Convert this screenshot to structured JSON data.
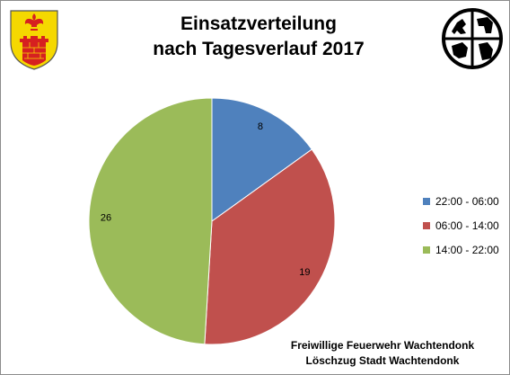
{
  "header": {
    "title_line1": "Einsatzverteilung",
    "title_line2": "nach Tagesverlauf 2017"
  },
  "footer": {
    "line1": "Freiwillige Feuerwehr Wachtendonk",
    "line2": "Löschzug Stadt Wachtendonk"
  },
  "logos": {
    "left": "wachtendonk-coat-of-arms",
    "right": "fire-brigade-emblem"
  },
  "chart_data": {
    "type": "pie",
    "categories": [
      "22:00 - 06:00",
      "06:00 - 14:00",
      "14:00 - 22:00"
    ],
    "values": [
      8,
      19,
      26
    ],
    "colors": [
      "#4f81bd",
      "#c0504d",
      "#9bbb59"
    ],
    "legend_position": "right",
    "start": "12 o'clock, clockwise"
  }
}
